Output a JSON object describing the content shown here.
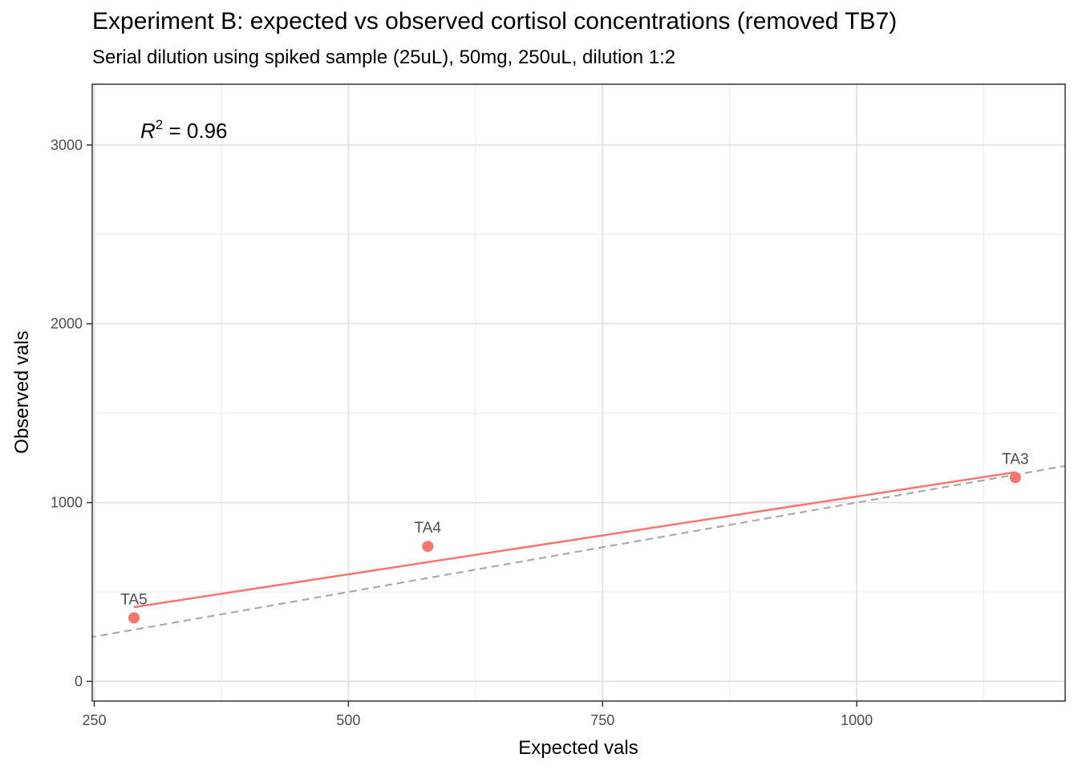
{
  "chart_data": {
    "type": "scatter",
    "title": "Experiment B: expected vs observed cortisol concentrations (removed TB7)",
    "subtitle": "Serial dilution using spiked sample (25uL), 50mg, 250uL, dilution 1:2",
    "xlabel": "Expected vals",
    "ylabel": "Observed vals",
    "xlim": [
      248,
      1205
    ],
    "ylim": [
      -110,
      3340
    ],
    "x_ticks": [
      250,
      500,
      750,
      1000
    ],
    "x_tick_labels": [
      "250",
      "500",
      "750",
      "1000"
    ],
    "y_ticks": [
      0,
      1000,
      2000,
      3000
    ],
    "y_tick_labels": [
      "0",
      "1000",
      "2000",
      "3000"
    ],
    "grid": true,
    "points": [
      {
        "label": "TA5",
        "x": 289,
        "y": 355
      },
      {
        "label": "TA4",
        "x": 578,
        "y": 755
      },
      {
        "label": "TA3",
        "x": 1156,
        "y": 1140
      }
    ],
    "fit_line": {
      "x": [
        289,
        1156
      ],
      "y": [
        415,
        1170
      ],
      "color": "#F8766D"
    },
    "identity_line": {
      "slope": 1,
      "intercept": 0,
      "style": "dashed",
      "color": "#AAAAAA"
    },
    "point_color": "#F8766D",
    "annotation": {
      "r2_symbol": "R",
      "r2_exponent": "2",
      "r2_text": " = 0.96"
    }
  }
}
